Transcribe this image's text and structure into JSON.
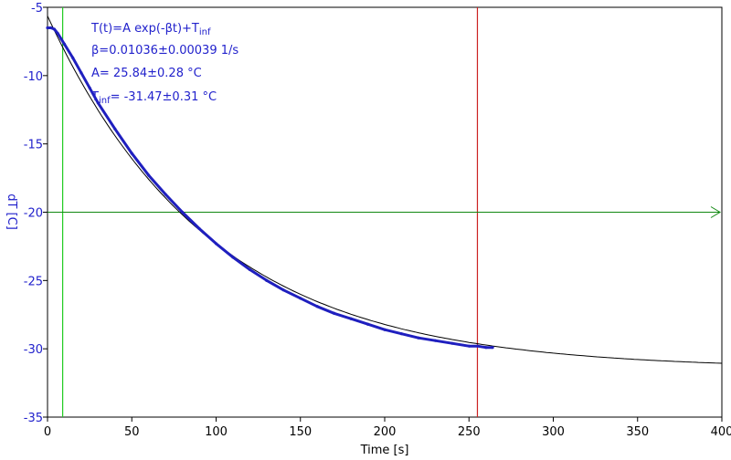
{
  "chart_data": {
    "type": "scatter",
    "xlabel": "Time [s]",
    "ylabel": "dT [C]",
    "xlim": [
      0,
      400
    ],
    "ylim": [
      -35,
      -5
    ],
    "x_ticks": [
      0,
      50,
      100,
      150,
      200,
      250,
      300,
      350,
      400
    ],
    "y_ticks": [
      -5,
      -10,
      -15,
      -20,
      -25,
      -30,
      -35
    ],
    "grid": false,
    "fit": {
      "model": "T(t)=A exp(-βt)+T_inf",
      "beta": 0.01036,
      "A": 25.84,
      "T_inf": -31.47,
      "x_range": [
        0,
        400
      ]
    },
    "series": [
      {
        "x": [
          0,
          2,
          4,
          6,
          8,
          10,
          15,
          20,
          25,
          30,
          40,
          50,
          60,
          70,
          80,
          90,
          100,
          110,
          120,
          130,
          140,
          150,
          160,
          170,
          180,
          190,
          200,
          210,
          220,
          230,
          240,
          250,
          255,
          260,
          264
        ],
        "y": [
          -6.5,
          -6.5,
          -6.6,
          -6.9,
          -7.3,
          -7.7,
          -8.7,
          -9.8,
          -10.9,
          -12.0,
          -13.9,
          -15.7,
          -17.3,
          -18.7,
          -20.0,
          -21.2,
          -22.3,
          -23.3,
          -24.2,
          -25.0,
          -25.7,
          -26.3,
          -26.9,
          -27.4,
          -27.8,
          -28.2,
          -28.6,
          -28.9,
          -29.2,
          -29.4,
          -29.6,
          -29.8,
          -29.8,
          -29.9,
          -29.9
        ]
      }
    ],
    "markers": {
      "green_vertical_x": 9,
      "red_vertical_x": 255,
      "horizontal_arrow_y": -20
    },
    "colors": {
      "data": "#1f1fbf",
      "fit": "#000000",
      "green_line": "#22cc22",
      "red_line": "#cc2222",
      "horizontal_line": "#118811",
      "ylabel_text": "#2222cc",
      "ann_text": "#2222cc"
    }
  },
  "annotations": {
    "line1": "T(t)=A exp(-βt)+T",
    "line1_sub": "inf",
    "line2": "β=0.01036±0.00039 1/s",
    "line3": "A= 25.84±0.28 °C",
    "line4_pre": "T",
    "line4_sub": "inf",
    "line4_post": "= -31.47±0.31 °C"
  }
}
